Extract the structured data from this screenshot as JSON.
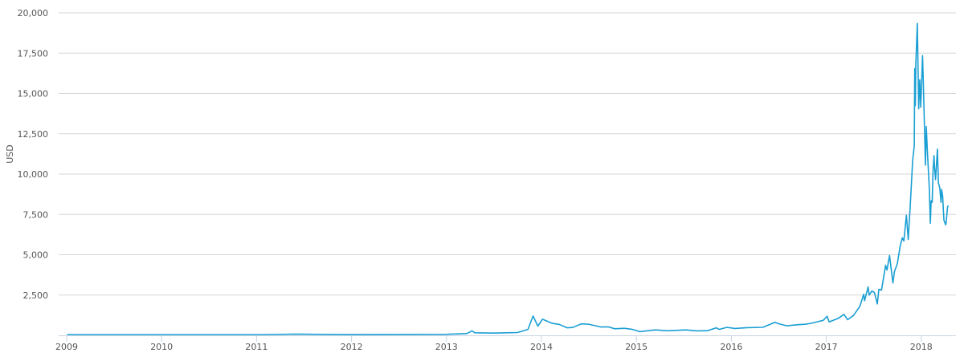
{
  "chart_data": {
    "type": "line",
    "title": "",
    "xlabel": "",
    "ylabel": "USD",
    "ylim": [
      0,
      20000
    ],
    "xlim": [
      "2009-01-01",
      "2018-05-01"
    ],
    "grid": "horizontal",
    "line_color": "#1a9fd4",
    "y_ticks": [
      "2,500",
      "5,000",
      "7,500",
      "10,000",
      "12,500",
      "15,000",
      "17,500",
      "20,000"
    ],
    "y_tick_values": [
      2500,
      5000,
      7500,
      10000,
      12500,
      15000,
      17500,
      20000
    ],
    "x_ticks": [
      "2009",
      "2010",
      "2011",
      "2012",
      "2013",
      "2014",
      "2015",
      "2016",
      "2017",
      "2018"
    ],
    "series": [
      {
        "points": [
          [
            "2009-01-03",
            0
          ],
          [
            "2010-07-17",
            0.05
          ],
          [
            "2011-02-01",
            1
          ],
          [
            "2011-06-08",
            30
          ],
          [
            "2011-08-01",
            13
          ],
          [
            "2012-01-01",
            5
          ],
          [
            "2012-08-15",
            12
          ],
          [
            "2013-01-01",
            13
          ],
          [
            "2013-03-20",
            60
          ],
          [
            "2013-04-09",
            230
          ],
          [
            "2013-04-20",
            110
          ],
          [
            "2013-07-01",
            90
          ],
          [
            "2013-10-01",
            125
          ],
          [
            "2013-11-10",
            320
          ],
          [
            "2013-11-30",
            1150
          ],
          [
            "2013-12-18",
            520
          ],
          [
            "2014-01-05",
            950
          ],
          [
            "2014-02-10",
            700
          ],
          [
            "2014-03-10",
            630
          ],
          [
            "2014-04-10",
            420
          ],
          [
            "2014-05-01",
            440
          ],
          [
            "2014-06-03",
            660
          ],
          [
            "2014-07-01",
            640
          ],
          [
            "2014-08-18",
            470
          ],
          [
            "2014-09-15",
            480
          ],
          [
            "2014-10-10",
            360
          ],
          [
            "2014-11-15",
            390
          ],
          [
            "2014-12-15",
            330
          ],
          [
            "2015-01-14",
            180
          ],
          [
            "2015-02-15",
            240
          ],
          [
            "2015-03-15",
            290
          ],
          [
            "2015-05-01",
            235
          ],
          [
            "2015-07-10",
            290
          ],
          [
            "2015-08-20",
            230
          ],
          [
            "2015-10-01",
            240
          ],
          [
            "2015-11-04",
            420
          ],
          [
            "2015-11-15",
            320
          ],
          [
            "2015-12-15",
            450
          ],
          [
            "2016-01-15",
            380
          ],
          [
            "2016-03-01",
            430
          ],
          [
            "2016-05-01",
            450
          ],
          [
            "2016-06-17",
            760
          ],
          [
            "2016-07-01",
            670
          ],
          [
            "2016-08-02",
            540
          ],
          [
            "2016-09-15",
            610
          ],
          [
            "2016-10-15",
            640
          ],
          [
            "2016-11-15",
            740
          ],
          [
            "2016-12-20",
            880
          ],
          [
            "2017-01-04",
            1130
          ],
          [
            "2017-01-12",
            780
          ],
          [
            "2017-02-15",
            1000
          ],
          [
            "2017-03-10",
            1250
          ],
          [
            "2017-03-24",
            920
          ],
          [
            "2017-04-15",
            1180
          ],
          [
            "2017-05-10",
            1750
          ],
          [
            "2017-05-25",
            2500
          ],
          [
            "2017-05-28",
            2100
          ],
          [
            "2017-06-11",
            2950
          ],
          [
            "2017-06-15",
            2450
          ],
          [
            "2017-06-25",
            2700
          ],
          [
            "2017-07-05",
            2600
          ],
          [
            "2017-07-16",
            1900
          ],
          [
            "2017-07-22",
            2800
          ],
          [
            "2017-08-01",
            2750
          ],
          [
            "2017-08-17",
            4300
          ],
          [
            "2017-08-22",
            4000
          ],
          [
            "2017-09-01",
            4900
          ],
          [
            "2017-09-14",
            3200
          ],
          [
            "2017-09-20",
            3900
          ],
          [
            "2017-10-01",
            4400
          ],
          [
            "2017-10-12",
            5500
          ],
          [
            "2017-10-20",
            6000
          ],
          [
            "2017-10-26",
            5800
          ],
          [
            "2017-11-05",
            7400
          ],
          [
            "2017-11-12",
            5900
          ],
          [
            "2017-11-20",
            8100
          ],
          [
            "2017-11-29",
            10800
          ],
          [
            "2017-12-05",
            11700
          ],
          [
            "2017-12-07",
            16500
          ],
          [
            "2017-12-09",
            14200
          ],
          [
            "2017-12-11",
            16700
          ],
          [
            "2017-12-17",
            19300
          ],
          [
            "2017-12-22",
            14000
          ],
          [
            "2017-12-26",
            15800
          ],
          [
            "2017-12-30",
            14100
          ],
          [
            "2018-01-06",
            17300
          ],
          [
            "2018-01-10",
            15000
          ],
          [
            "2018-01-17",
            10500
          ],
          [
            "2018-01-20",
            12900
          ],
          [
            "2018-01-25",
            11200
          ],
          [
            "2018-02-01",
            9100
          ],
          [
            "2018-02-05",
            6900
          ],
          [
            "2018-02-08",
            8300
          ],
          [
            "2018-02-12",
            8200
          ],
          [
            "2018-02-15",
            10100
          ],
          [
            "2018-02-19",
            11100
          ],
          [
            "2018-02-21",
            10400
          ],
          [
            "2018-02-25",
            9600
          ],
          [
            "2018-03-04",
            11500
          ],
          [
            "2018-03-08",
            9400
          ],
          [
            "2018-03-13",
            9100
          ],
          [
            "2018-03-18",
            8200
          ],
          [
            "2018-03-20",
            9000
          ],
          [
            "2018-03-24",
            8600
          ],
          [
            "2018-03-29",
            7100
          ],
          [
            "2018-04-05",
            6800
          ],
          [
            "2018-04-07",
            7000
          ],
          [
            "2018-04-12",
            7900
          ],
          [
            "2018-04-15",
            8000
          ]
        ]
      }
    ]
  }
}
